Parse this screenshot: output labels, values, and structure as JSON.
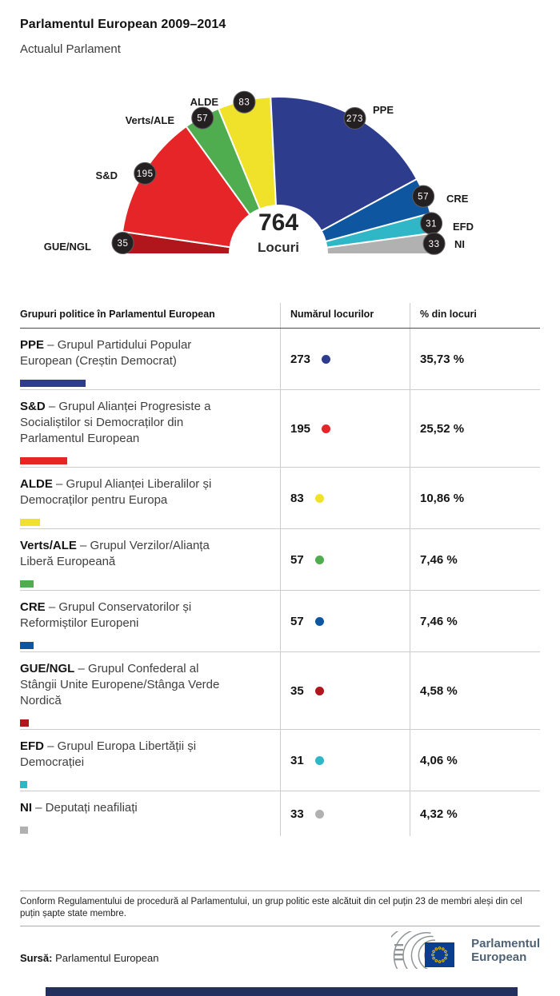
{
  "header": {
    "title": "Parlamentul European 2009–2014",
    "subtitle": "Actualul Parlament"
  },
  "chart_data": {
    "type": "pie",
    "variant": "hemicycle-half-donut",
    "title": "Parlamentul European 2009–2014",
    "center_total": "764",
    "center_label": "Locuri",
    "total_seats": 764,
    "legend_position": "around-arc",
    "series": [
      {
        "name": "GUE/NGL",
        "seats": 35,
        "percent": "4,58 %",
        "color": "#b2161d"
      },
      {
        "name": "S&D",
        "seats": 195,
        "percent": "25,52 %",
        "color": "#e52528"
      },
      {
        "name": "Verts/ALE",
        "seats": 57,
        "percent": "7,46 %",
        "color": "#4fad50"
      },
      {
        "name": "ALDE",
        "seats": 83,
        "percent": "10,86 %",
        "color": "#f0e12b"
      },
      {
        "name": "PPE",
        "seats": 273,
        "percent": "35,73 %",
        "color": "#2d3c8d"
      },
      {
        "name": "CRE",
        "seats": 57,
        "percent": "7,46 %",
        "color": "#0e56a0"
      },
      {
        "name": "EFD",
        "seats": 31,
        "percent": "4,06 %",
        "color": "#2fb7c8"
      },
      {
        "name": "NI",
        "seats": 33,
        "percent": "4,32 %",
        "color": "#b1b1b1"
      }
    ]
  },
  "table": {
    "headers": [
      "Grupuri politice în Parlamentul European",
      "Numărul locurilor",
      "% din locuri"
    ],
    "separator": "–",
    "rows": [
      {
        "abbr": "PPE",
        "name": "Grupul Partidului Popular European (Creștin Democrat)",
        "seats": "273",
        "percent": "35,73 %",
        "color": "#2d3c8d",
        "seats_num": 273
      },
      {
        "abbr": "S&D",
        "name": "Grupul Alianței Progresiste a Socialiștilor si Democraților din Parlamentul European",
        "seats": "195",
        "percent": "25,52 %",
        "color": "#e52528",
        "seats_num": 195
      },
      {
        "abbr": "ALDE",
        "name": "Grupul Alianței Liberalilor și Democraților pentru Europa",
        "seats": "83",
        "percent": "10,86 %",
        "color": "#f0e12b",
        "seats_num": 83
      },
      {
        "abbr": "Verts/ALE",
        "name": "Grupul Verzilor/Alianța Liberă Europeană",
        "seats": "57",
        "percent": "7,46 %",
        "color": "#4fad50",
        "seats_num": 57
      },
      {
        "abbr": "CRE",
        "name": "Grupul Conservatorilor și Reformiștilor Europeni",
        "seats": "57",
        "percent": "7,46 %",
        "color": "#0e56a0",
        "seats_num": 57
      },
      {
        "abbr": "GUE/NGL",
        "name": "Grupul Confederal al Stângii Unite Europene/Stânga Verde Nordică",
        "seats": "35",
        "percent": "4,58 %",
        "color": "#b2161d",
        "seats_num": 35
      },
      {
        "abbr": "EFD",
        "name": "Grupul Europa Libertății și Democrației",
        "seats": "31",
        "percent": "4,06 %",
        "color": "#2fb7c8",
        "seats_num": 31
      },
      {
        "abbr": "NI",
        "name": "Deputați neafiliați",
        "seats": "33",
        "percent": "4,32 %",
        "color": "#b1b1b1",
        "seats_num": 33
      }
    ]
  },
  "footnote": "Conform Regulamentului de procedură al Parlamentului, un grup politic este alcătuit din cel puțin 23 de membri aleși din cel puțin șapte state membre.",
  "source": {
    "label": "Sursă:",
    "value": "Parlamentul European"
  },
  "logo": {
    "line1": "Parlamentul",
    "line2": "European",
    "text_color": "#4f6273",
    "flag_color": "#0a3e8f",
    "star_color": "#ffcc00",
    "arc_color": "#8f9496"
  },
  "footer": {
    "bar_color": "#23305f"
  }
}
